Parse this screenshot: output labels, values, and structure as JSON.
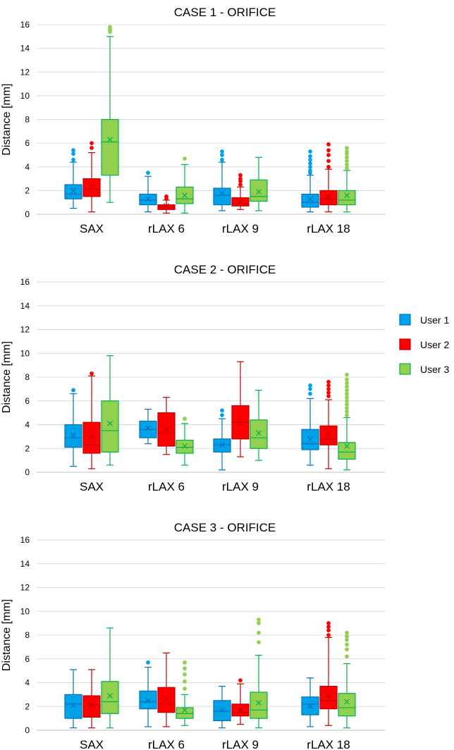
{
  "chart_data": [
    {
      "type": "box",
      "title": "CASE 1 - ORIFICE",
      "ylabel": "Distance [mm]",
      "ylim": [
        0,
        16
      ],
      "yticks": [
        0,
        2,
        4,
        6,
        8,
        10,
        12,
        14,
        16
      ],
      "yticks_labels": [
        "0",
        "2",
        "4",
        "6",
        "8",
        "10",
        "12",
        "14",
        "16"
      ],
      "categories": [
        "SAX",
        "rLAX 6",
        "rLAX 9",
        "rLAX 18"
      ],
      "series": [
        {
          "name": "User 1",
          "boxes": [
            {
              "lower": 0.5,
              "q1": 1.3,
              "median": 1.7,
              "q3": 2.5,
              "upper": 4.4,
              "mean": 2.0,
              "outliers": [
                4.6,
                5.1,
                5.4
              ]
            },
            {
              "lower": 0.2,
              "q1": 0.8,
              "median": 1.2,
              "q3": 1.7,
              "upper": 3.2,
              "mean": 1.3,
              "outliers": [
                3.5
              ]
            },
            {
              "lower": 0.3,
              "q1": 0.8,
              "median": 1.6,
              "q3": 2.2,
              "upper": 4.4,
              "mean": 1.8,
              "outliers": [
                4.6,
                5.0,
                5.3
              ]
            },
            {
              "lower": 0.2,
              "q1": 0.6,
              "median": 1.0,
              "q3": 1.7,
              "upper": 3.3,
              "mean": 1.3,
              "outliers": [
                3.5,
                3.7,
                4.0,
                4.3,
                4.6,
                4.9,
                5.3
              ]
            }
          ]
        },
        {
          "name": "User 2",
          "boxes": [
            {
              "lower": 0.2,
              "q1": 1.5,
              "median": 2.1,
              "q3": 3.0,
              "upper": 5.2,
              "mean": 2.3,
              "outliers": [
                5.6,
                6.0
              ]
            },
            {
              "lower": 0.1,
              "q1": 0.4,
              "median": 0.6,
              "q3": 0.8,
              "upper": 1.2,
              "mean": 0.7,
              "outliers": [
                1.3,
                1.5
              ]
            },
            {
              "lower": 0.4,
              "q1": 0.7,
              "median": 0.9,
              "q3": 1.4,
              "upper": 2.3,
              "mean": 1.1,
              "outliers": [
                2.5,
                2.8,
                3.0,
                3.3
              ]
            },
            {
              "lower": 0.2,
              "q1": 0.8,
              "median": 1.3,
              "q3": 2.0,
              "upper": 3.8,
              "mean": 1.5,
              "outliers": [
                4.0,
                4.5,
                5.0,
                5.4,
                5.9
              ]
            }
          ]
        },
        {
          "name": "User 3",
          "boxes": [
            {
              "lower": 1.0,
              "q1": 3.3,
              "median": 6.1,
              "q3": 8.0,
              "upper": 15.0,
              "mean": 6.3,
              "outliers": [
                15.4,
                15.6,
                15.8
              ]
            },
            {
              "lower": 0.1,
              "q1": 0.9,
              "median": 1.3,
              "q3": 2.3,
              "upper": 4.2,
              "mean": 1.6,
              "outliers": [
                4.7
              ]
            },
            {
              "lower": 0.3,
              "q1": 1.1,
              "median": 1.5,
              "q3": 2.9,
              "upper": 4.8,
              "mean": 1.9,
              "outliers": []
            },
            {
              "lower": 0.2,
              "q1": 0.8,
              "median": 1.2,
              "q3": 2.0,
              "upper": 3.7,
              "mean": 1.6,
              "outliers": [
                3.9,
                4.2,
                4.5,
                4.8,
                5.1,
                5.3,
                5.6
              ]
            }
          ]
        }
      ]
    },
    {
      "type": "box",
      "title": "CASE 2 - ORIFICE",
      "ylabel": "Distance [mm]",
      "ylim": [
        0,
        16
      ],
      "yticks": [
        0,
        2,
        4,
        6,
        8,
        10,
        12,
        14,
        16
      ],
      "yticks_labels": [
        "0",
        "2",
        "4",
        "6",
        "8",
        "10",
        "12",
        "14",
        "16"
      ],
      "categories": [
        "SAX",
        "rLAX 6",
        "rLAX 9",
        "rLAX 18"
      ],
      "series": [
        {
          "name": "User 1",
          "boxes": [
            {
              "lower": 0.5,
              "q1": 2.1,
              "median": 2.9,
              "q3": 4.0,
              "upper": 6.6,
              "mean": 3.1,
              "outliers": [
                6.9
              ]
            },
            {
              "lower": 2.4,
              "q1": 2.9,
              "median": 3.6,
              "q3": 4.3,
              "upper": 5.3,
              "mean": 3.7,
              "outliers": []
            },
            {
              "lower": 0.2,
              "q1": 1.7,
              "median": 2.3,
              "q3": 2.8,
              "upper": 4.5,
              "mean": 2.3,
              "outliers": [
                4.8,
                5.2
              ]
            },
            {
              "lower": 0.6,
              "q1": 1.9,
              "median": 2.4,
              "q3": 3.6,
              "upper": 6.2,
              "mean": 2.8,
              "outliers": [
                6.6,
                7.0,
                7.3
              ]
            }
          ]
        },
        {
          "name": "User 2",
          "boxes": [
            {
              "lower": 0.3,
              "q1": 1.6,
              "median": 2.3,
              "q3": 4.2,
              "upper": 8.1,
              "mean": 3.0,
              "outliers": [
                8.3
              ]
            },
            {
              "lower": 1.5,
              "q1": 2.2,
              "median": 3.3,
              "q3": 5.0,
              "upper": 6.3,
              "mean": 3.6,
              "outliers": []
            },
            {
              "lower": 1.3,
              "q1": 2.8,
              "median": 4.2,
              "q3": 5.6,
              "upper": 9.3,
              "mean": 4.1,
              "outliers": []
            },
            {
              "lower": 0.3,
              "q1": 2.3,
              "median": 2.8,
              "q3": 3.9,
              "upper": 6.1,
              "mean": 3.2,
              "outliers": [
                6.4,
                6.7,
                7.0,
                7.3,
                7.6
              ]
            }
          ]
        },
        {
          "name": "User 3",
          "boxes": [
            {
              "lower": 0.6,
              "q1": 1.7,
              "median": 3.5,
              "q3": 6.0,
              "upper": 9.8,
              "mean": 4.1,
              "outliers": []
            },
            {
              "lower": 0.6,
              "q1": 1.6,
              "median": 2.1,
              "q3": 2.7,
              "upper": 4.1,
              "mean": 2.2,
              "outliers": [
                4.5
              ]
            },
            {
              "lower": 1.0,
              "q1": 2.0,
              "median": 2.9,
              "q3": 4.4,
              "upper": 6.9,
              "mean": 3.3,
              "outliers": []
            },
            {
              "lower": 0.2,
              "q1": 1.1,
              "median": 1.7,
              "q3": 2.5,
              "upper": 4.6,
              "mean": 2.2,
              "outliers": [
                4.8,
                5.1,
                5.4,
                5.7,
                6.0,
                6.3,
                6.6,
                6.9,
                7.2,
                7.5,
                7.8,
                8.2
              ]
            }
          ]
        }
      ]
    },
    {
      "type": "box",
      "title": "CASE 3 - ORIFICE",
      "ylabel": "Distance [mm]",
      "ylim": [
        0,
        16
      ],
      "yticks": [
        0,
        2,
        4,
        6,
        8,
        10,
        12,
        14,
        16
      ],
      "yticks_labels": [
        "0",
        "2",
        "4",
        "6",
        "8",
        "10",
        "12",
        "14",
        "16"
      ],
      "categories": [
        "SAX",
        "rLAX 6",
        "rLAX 9",
        "rLAX 18"
      ],
      "series": [
        {
          "name": "User 1",
          "boxes": [
            {
              "lower": 0.2,
              "q1": 1.0,
              "median": 2.2,
              "q3": 3.0,
              "upper": 5.1,
              "mean": 2.1,
              "outliers": []
            },
            {
              "lower": 0.3,
              "q1": 1.8,
              "median": 2.4,
              "q3": 3.3,
              "upper": 5.3,
              "mean": 2.5,
              "outliers": [
                5.7
              ]
            },
            {
              "lower": 0.2,
              "q1": 0.8,
              "median": 1.6,
              "q3": 2.5,
              "upper": 3.7,
              "mean": 1.7,
              "outliers": []
            },
            {
              "lower": 0.3,
              "q1": 1.3,
              "median": 2.2,
              "q3": 2.8,
              "upper": 4.4,
              "mean": 2.0,
              "outliers": []
            }
          ]
        },
        {
          "name": "User 2",
          "boxes": [
            {
              "lower": 0.2,
              "q1": 1.1,
              "median": 2.1,
              "q3": 2.9,
              "upper": 5.1,
              "mean": 2.1,
              "outliers": []
            },
            {
              "lower": 0.3,
              "q1": 1.5,
              "median": 2.2,
              "q3": 3.6,
              "upper": 6.5,
              "mean": 2.6,
              "outliers": []
            },
            {
              "lower": 0.5,
              "q1": 1.2,
              "median": 1.5,
              "q3": 2.2,
              "upper": 3.9,
              "mean": 1.7,
              "outliers": [
                4.2
              ]
            },
            {
              "lower": 0.4,
              "q1": 1.8,
              "median": 2.5,
              "q3": 3.7,
              "upper": 7.8,
              "mean": 2.9,
              "outliers": [
                8.0,
                8.4,
                8.7,
                9.0
              ]
            }
          ]
        },
        {
          "name": "User 3",
          "boxes": [
            {
              "lower": 0.2,
              "q1": 1.4,
              "median": 2.4,
              "q3": 4.1,
              "upper": 8.6,
              "mean": 2.9,
              "outliers": []
            },
            {
              "lower": 0.4,
              "q1": 1.0,
              "median": 1.4,
              "q3": 1.9,
              "upper": 3.0,
              "mean": 1.7,
              "outliers": [
                3.5,
                4.1,
                4.7,
                5.2,
                5.7
              ]
            },
            {
              "lower": 0.2,
              "q1": 1.0,
              "median": 1.7,
              "q3": 3.2,
              "upper": 6.3,
              "mean": 2.3,
              "outliers": [
                7.4,
                8.2,
                9.0,
                9.3
              ]
            },
            {
              "lower": 0.2,
              "q1": 1.2,
              "median": 1.9,
              "q3": 3.1,
              "upper": 5.6,
              "mean": 2.4,
              "outliers": [
                6.2,
                6.8,
                7.2,
                7.6,
                7.9,
                8.2
              ]
            }
          ]
        }
      ]
    }
  ],
  "legend": {
    "position": "right",
    "items": [
      {
        "label": "User 1",
        "fill": "#00a3e8",
        "stroke": "#0070c0"
      },
      {
        "label": "User 2",
        "fill": "#ff0000",
        "stroke": "#c00000"
      },
      {
        "label": "User 3",
        "fill": "#92d050",
        "stroke": "#00b050"
      }
    ]
  },
  "colors": {
    "user1_fill": "#00a3e8",
    "user1_stroke": "#0070c0",
    "user2_fill": "#ff0000",
    "user2_stroke": "#c00000",
    "user3_fill": "#92d050",
    "user3_stroke": "#00b050",
    "grid": "#d9d9d9"
  }
}
